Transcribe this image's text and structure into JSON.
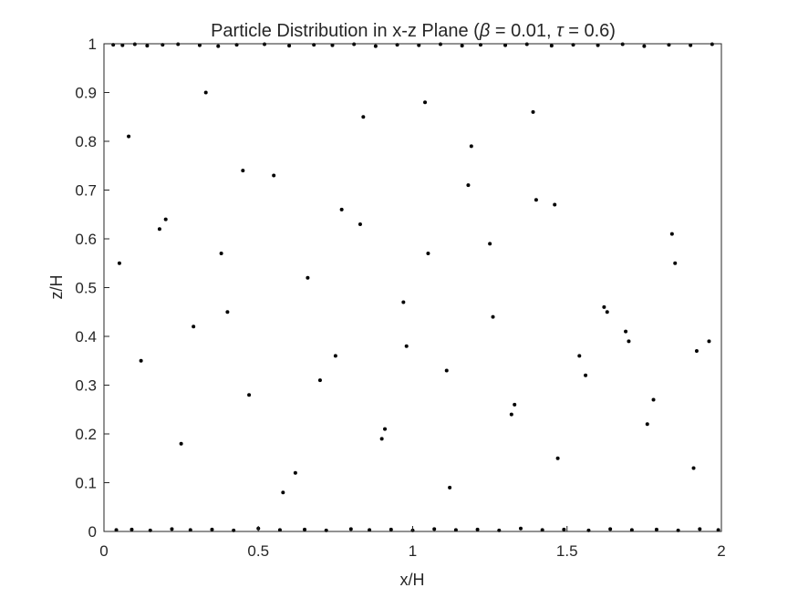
{
  "chart_data": {
    "type": "scatter",
    "title": "Particle Distribution in x-z Plane (β = 0.01, τ = 0.6)",
    "xlabel": "x/H",
    "ylabel": "z/H",
    "xlim": [
      0,
      2
    ],
    "ylim": [
      0,
      1
    ],
    "x_ticks": [
      0,
      0.5,
      1,
      1.5,
      2
    ],
    "x_tick_labels": [
      "0",
      "0.5",
      "1",
      "1.5",
      "2"
    ],
    "y_ticks": [
      0,
      0.1,
      0.2,
      0.3,
      0.4,
      0.5,
      0.6,
      0.7,
      0.8,
      0.9,
      1
    ],
    "y_tick_labels": [
      "0",
      "0.1",
      "0.2",
      "0.3",
      "0.4",
      "0.5",
      "0.6",
      "0.7",
      "0.8",
      "0.9",
      "1"
    ],
    "grid": false,
    "legend": "none",
    "marker_color": "#000000",
    "series": [
      {
        "x": [
          0.03,
          0.06,
          0.1,
          0.14,
          0.19,
          0.24,
          0.31,
          0.37,
          0.43,
          0.52,
          0.6,
          0.68,
          0.74,
          0.81,
          0.88,
          0.95,
          1.02,
          1.09,
          1.16,
          1.22,
          1.3,
          1.37,
          1.45,
          1.52,
          1.6,
          1.68,
          1.75,
          1.83,
          1.9,
          1.97,
          0.04,
          0.09,
          0.15,
          0.22,
          0.28,
          0.35,
          0.42,
          0.5,
          0.57,
          0.65,
          0.72,
          0.8,
          0.86,
          0.93,
          1.0,
          1.07,
          1.14,
          1.21,
          1.28,
          1.35,
          1.42,
          1.49,
          1.57,
          1.64,
          1.71,
          1.79,
          1.86,
          1.93,
          1.99,
          0.05,
          0.12,
          0.18,
          0.25,
          0.33,
          0.4,
          0.47,
          0.55,
          0.62,
          0.7,
          0.77,
          0.84,
          0.91,
          0.98,
          1.05,
          1.12,
          1.19,
          1.26,
          1.33,
          1.4,
          1.47,
          1.54,
          1.62,
          1.69,
          1.76,
          1.84,
          1.91,
          1.96,
          0.08,
          0.2,
          0.29,
          0.38,
          0.45,
          0.58,
          0.66,
          0.75,
          0.83,
          0.9,
          0.97,
          1.04,
          1.11,
          1.18,
          1.25,
          1.32,
          1.39,
          1.46,
          1.56,
          1.63,
          1.7,
          1.78,
          1.85,
          1.92
        ],
        "y": [
          0.998,
          0.997,
          0.999,
          0.996,
          0.998,
          0.999,
          0.997,
          0.995,
          0.998,
          0.999,
          0.996,
          0.998,
          0.997,
          0.999,
          0.995,
          0.998,
          0.997,
          0.999,
          0.996,
          0.998,
          0.997,
          0.999,
          0.996,
          0.998,
          0.997,
          0.999,
          0.995,
          0.998,
          0.997,
          0.999,
          0.003,
          0.004,
          0.002,
          0.005,
          0.003,
          0.004,
          0.002,
          0.006,
          0.003,
          0.004,
          0.002,
          0.005,
          0.003,
          0.004,
          0.002,
          0.005,
          0.003,
          0.004,
          0.002,
          0.006,
          0.003,
          0.004,
          0.002,
          0.005,
          0.003,
          0.004,
          0.002,
          0.005,
          0.003,
          0.55,
          0.35,
          0.62,
          0.18,
          0.9,
          0.45,
          0.28,
          0.73,
          0.12,
          0.31,
          0.66,
          0.85,
          0.21,
          0.38,
          0.57,
          0.09,
          0.79,
          0.44,
          0.26,
          0.68,
          0.15,
          0.36,
          0.46,
          0.41,
          0.22,
          0.61,
          0.13,
          0.39,
          0.81,
          0.64,
          0.42,
          0.57,
          0.74,
          0.08,
          0.52,
          0.36,
          0.63,
          0.19,
          0.47,
          0.88,
          0.33,
          0.71,
          0.59,
          0.24,
          0.86,
          0.67,
          0.32,
          0.45,
          0.39,
          0.27,
          0.55,
          0.37
        ]
      }
    ]
  }
}
